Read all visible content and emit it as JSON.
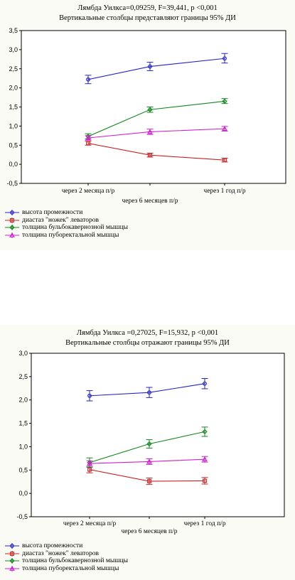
{
  "chart_data": [
    {
      "type": "line",
      "title": "Лямбда Уилкса=0,09259, F=39,441, p <0,001",
      "subtitle": "Вертикальные столбцы представляют границы 95% ДИ",
      "categories": [
        "через 2 месяца п/р",
        "через 6 месяцев п/р",
        "через 1 год п/р"
      ],
      "ylim": [
        -0.5,
        3.5
      ],
      "yticks": [
        "-0,5",
        "0,0",
        "0,5",
        "1,0",
        "1,5",
        "2,0",
        "2,5",
        "3,0",
        "3,5"
      ],
      "grid": false,
      "legend_position": "bottom-left",
      "series": [
        {
          "name": "высота промежности",
          "color": "#2323c8",
          "marker": "circle",
          "values": [
            2.22,
            2.56,
            2.77
          ],
          "ci": [
            [
              2.11,
              2.33
            ],
            [
              2.45,
              2.67
            ],
            [
              2.65,
              2.9
            ]
          ]
        },
        {
          "name": "диастаз \"ножек\" леваторов",
          "color": "#c82323",
          "marker": "square",
          "values": [
            0.55,
            0.24,
            0.11
          ],
          "ci": [
            [
              0.5,
              0.6
            ],
            [
              0.19,
              0.29
            ],
            [
              0.06,
              0.16
            ]
          ]
        },
        {
          "name": "толщина бульбокавернозной мышцы",
          "color": "#13881e",
          "marker": "diamond",
          "values": [
            0.73,
            1.43,
            1.65
          ],
          "ci": [
            [
              0.67,
              0.8
            ],
            [
              1.36,
              1.5
            ],
            [
              1.59,
              1.72
            ]
          ]
        },
        {
          "name": "толщина пуборектальной мышцы",
          "color": "#d21ed2",
          "marker": "triangle",
          "values": [
            0.69,
            0.85,
            0.93
          ],
          "ci": [
            [
              0.63,
              0.75
            ],
            [
              0.78,
              0.92
            ],
            [
              0.87,
              0.99
            ]
          ]
        }
      ]
    },
    {
      "type": "line",
      "title": "Лямбда Уилкса =0,27025, F=15,932, p <0,001",
      "subtitle": "Вертикальные столбцы отражают границы 95% ДИ",
      "categories": [
        "через 2 месяца п/р",
        "через 6 месяцев п/р",
        "через 1 год п/р"
      ],
      "ylim": [
        -0.5,
        3.0
      ],
      "yticks": [
        "-0,5",
        "0,0",
        "0,5",
        "1,0",
        "1,5",
        "2,0",
        "2,5",
        "3,0"
      ],
      "grid": false,
      "legend_position": "bottom-left",
      "series": [
        {
          "name": "высота промежности",
          "color": "#2323c8",
          "marker": "circle",
          "values": [
            2.09,
            2.16,
            2.35
          ],
          "ci": [
            [
              1.98,
              2.2
            ],
            [
              2.05,
              2.27
            ],
            [
              2.24,
              2.46
            ]
          ]
        },
        {
          "name": "диастаз \"ножек\" леваторов",
          "color": "#c82323",
          "marker": "square",
          "values": [
            0.51,
            0.26,
            0.27
          ],
          "ci": [
            [
              0.44,
              0.58
            ],
            [
              0.19,
              0.33
            ],
            [
              0.2,
              0.34
            ]
          ]
        },
        {
          "name": "толщина бульбокавернозной мышцы",
          "color": "#13881e",
          "marker": "diamond",
          "values": [
            0.66,
            1.06,
            1.32
          ],
          "ci": [
            [
              0.56,
              0.76
            ],
            [
              0.97,
              1.15
            ],
            [
              1.22,
              1.42
            ]
          ]
        },
        {
          "name": "толщина пуборектальной мышцы",
          "color": "#d21ed2",
          "marker": "triangle",
          "values": [
            0.64,
            0.68,
            0.73
          ],
          "ci": [
            [
              0.58,
              0.7
            ],
            [
              0.62,
              0.74
            ],
            [
              0.67,
              0.79
            ]
          ]
        }
      ]
    }
  ]
}
